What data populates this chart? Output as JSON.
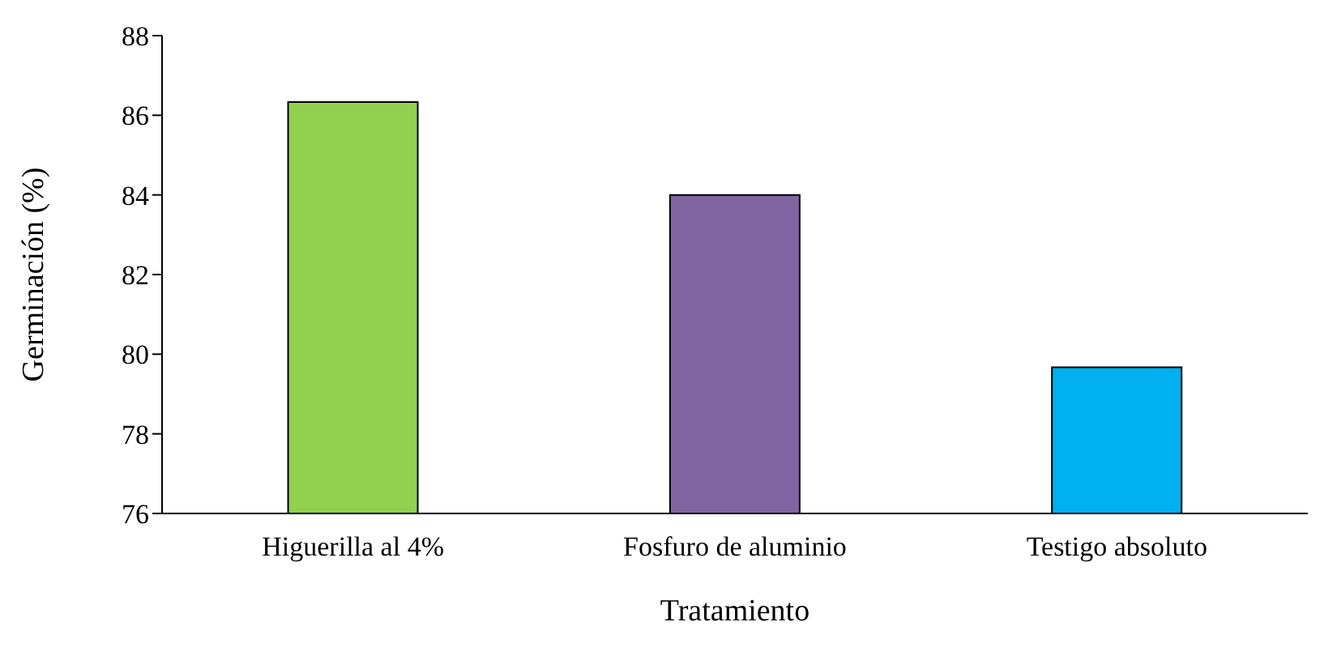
{
  "chart_data": {
    "type": "bar",
    "xlabel": "Tratamiento",
    "ylabel": "Germinación (%)",
    "categories": [
      "Higuerilla al 4%",
      "Fosfuro de aluminio",
      "Testigo absoluto"
    ],
    "values": [
      86.33,
      84,
      79.67
    ],
    "colors": [
      "#92d050",
      "#8064a2",
      "#00b0f0"
    ],
    "ylim": [
      76,
      88
    ],
    "yticks": [
      76,
      78,
      80,
      82,
      84,
      86,
      88
    ],
    "grid": false,
    "legend": false
  }
}
